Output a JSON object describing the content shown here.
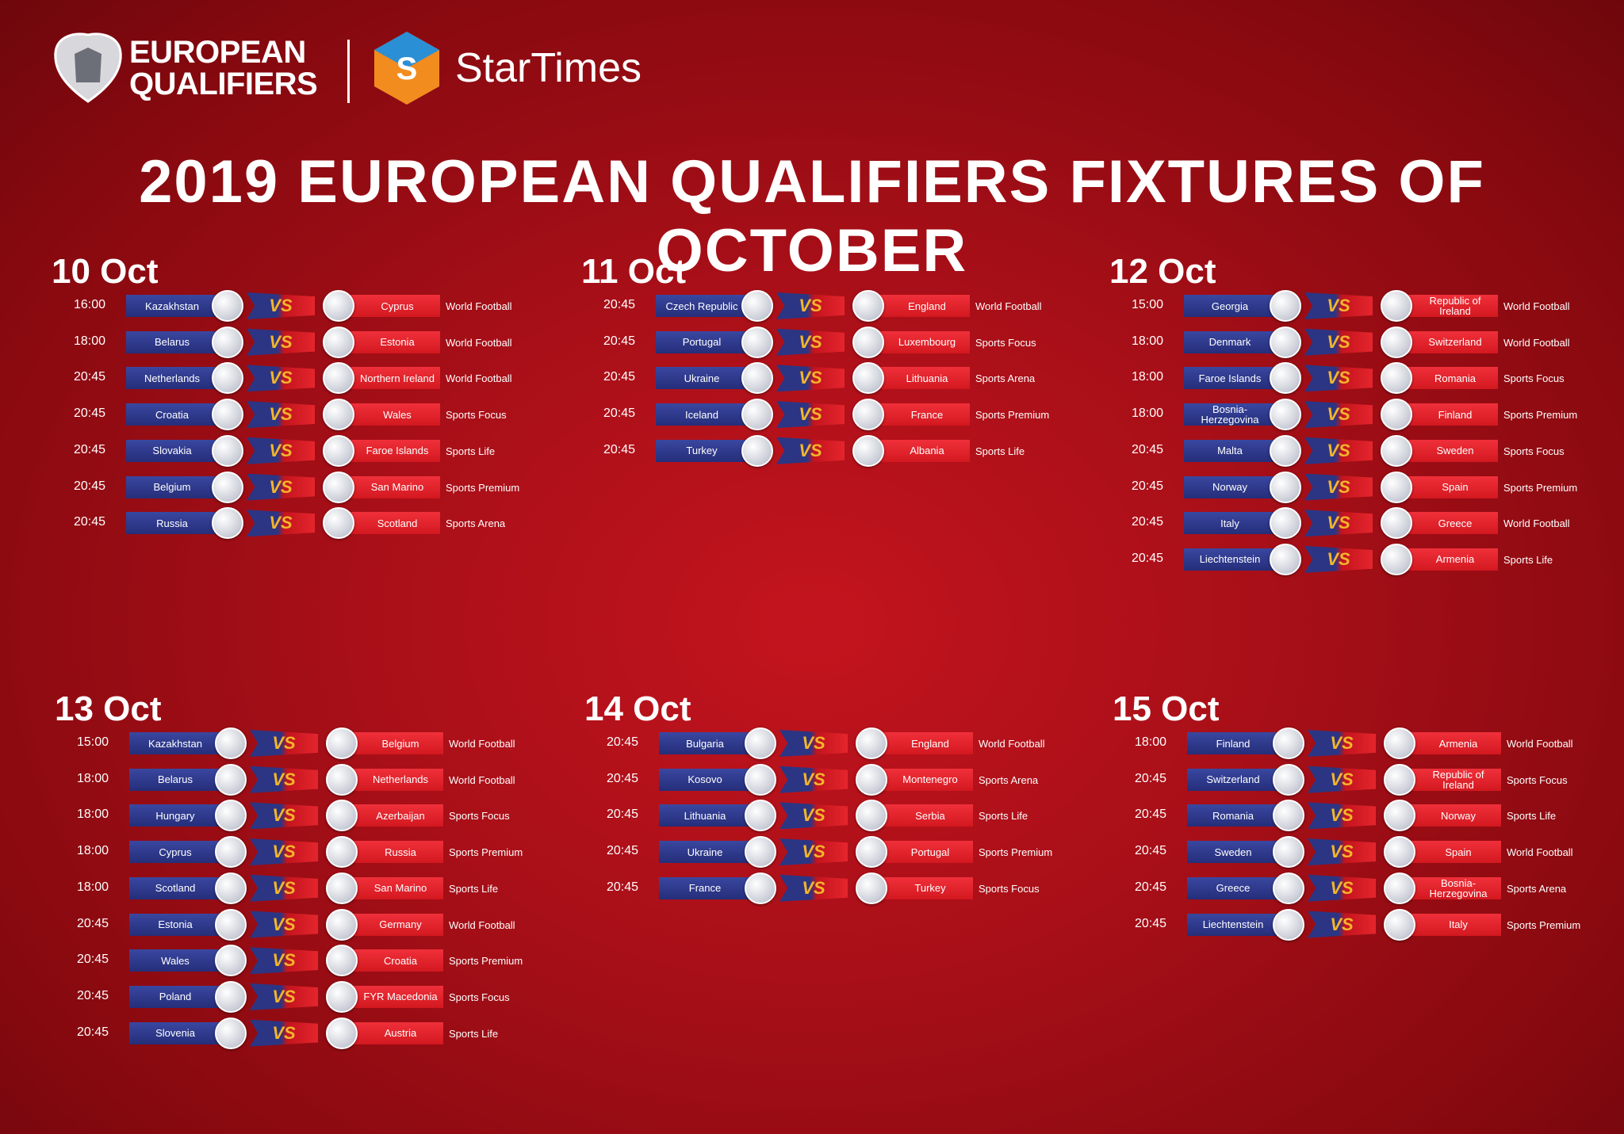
{
  "header": {
    "brand_line1": "EUROPEAN",
    "brand_line2": "QUALIFIERS",
    "partner": "StarTimes"
  },
  "title": "2019 EUROPEAN QUALIFIERS FIXTURES OF OCTOBER",
  "vs_label": "VS",
  "days": [
    {
      "date": "10 Oct",
      "matches": [
        {
          "time": "16:00",
          "home": "Kazakhstan",
          "away": "Cyprus",
          "channel": "World Football"
        },
        {
          "time": "18:00",
          "home": "Belarus",
          "away": "Estonia",
          "channel": "World Football"
        },
        {
          "time": "20:45",
          "home": "Netherlands",
          "away": "Northern Ireland",
          "channel": "World Football"
        },
        {
          "time": "20:45",
          "home": "Croatia",
          "away": "Wales",
          "channel": "Sports Focus"
        },
        {
          "time": "20:45",
          "home": "Slovakia",
          "away": "Faroe Islands",
          "channel": "Sports Life"
        },
        {
          "time": "20:45",
          "home": "Belgium",
          "away": "San Marino",
          "channel": "Sports Premium"
        },
        {
          "time": "20:45",
          "home": "Russia",
          "away": "Scotland",
          "channel": "Sports Arena"
        }
      ]
    },
    {
      "date": "11 Oct",
      "matches": [
        {
          "time": "20:45",
          "home": "Czech Republic",
          "away": "England",
          "channel": "World Football"
        },
        {
          "time": "20:45",
          "home": "Portugal",
          "away": "Luxembourg",
          "channel": "Sports Focus"
        },
        {
          "time": "20:45",
          "home": "Ukraine",
          "away": "Lithuania",
          "channel": "Sports Arena"
        },
        {
          "time": "20:45",
          "home": "Iceland",
          "away": "France",
          "channel": "Sports Premium"
        },
        {
          "time": "20:45",
          "home": "Turkey",
          "away": "Albania",
          "channel": "Sports Life"
        }
      ]
    },
    {
      "date": "12 Oct",
      "matches": [
        {
          "time": "15:00",
          "home": "Georgia",
          "away": "Republic of Ireland",
          "channel": "World Football"
        },
        {
          "time": "18:00",
          "home": "Denmark",
          "away": "Switzerland",
          "channel": "World Football"
        },
        {
          "time": "18:00",
          "home": "Faroe Islands",
          "away": "Romania",
          "channel": "Sports Focus"
        },
        {
          "time": "18:00",
          "home": "Bosnia-Herzegovina",
          "away": "Finland",
          "channel": "Sports Premium"
        },
        {
          "time": "20:45",
          "home": "Malta",
          "away": "Sweden",
          "channel": "Sports Focus"
        },
        {
          "time": "20:45",
          "home": "Norway",
          "away": "Spain",
          "channel": "Sports Premium"
        },
        {
          "time": "20:45",
          "home": "Italy",
          "away": "Greece",
          "channel": "World Football"
        },
        {
          "time": "20:45",
          "home": "Liechtenstein",
          "away": "Armenia",
          "channel": "Sports Life"
        }
      ]
    },
    {
      "date": "13 Oct",
      "matches": [
        {
          "time": "15:00",
          "home": "Kazakhstan",
          "away": "Belgium",
          "channel": "World Football"
        },
        {
          "time": "18:00",
          "home": "Belarus",
          "away": "Netherlands",
          "channel": "World Football"
        },
        {
          "time": "18:00",
          "home": "Hungary",
          "away": "Azerbaijan",
          "channel": "Sports Focus"
        },
        {
          "time": "18:00",
          "home": "Cyprus",
          "away": "Russia",
          "channel": "Sports Premium"
        },
        {
          "time": "18:00",
          "home": "Scotland",
          "away": "San Marino",
          "channel": "Sports Life"
        },
        {
          "time": "20:45",
          "home": "Estonia",
          "away": "Germany",
          "channel": "World Football"
        },
        {
          "time": "20:45",
          "home": "Wales",
          "away": "Croatia",
          "channel": "Sports Premium"
        },
        {
          "time": "20:45",
          "home": "Poland",
          "away": "FYR Macedonia",
          "channel": "Sports Focus"
        },
        {
          "time": "20:45",
          "home": "Slovenia",
          "away": "Austria",
          "channel": "Sports Life"
        }
      ]
    },
    {
      "date": "14 Oct",
      "matches": [
        {
          "time": "20:45",
          "home": "Bulgaria",
          "away": "England",
          "channel": "World Football"
        },
        {
          "time": "20:45",
          "home": "Kosovo",
          "away": "Montenegro",
          "channel": "Sports Arena"
        },
        {
          "time": "20:45",
          "home": "Lithuania",
          "away": "Serbia",
          "channel": "Sports Life"
        },
        {
          "time": "20:45",
          "home": "Ukraine",
          "away": "Portugal",
          "channel": "Sports Premium"
        },
        {
          "time": "20:45",
          "home": "France",
          "away": "Turkey",
          "channel": "Sports Focus"
        }
      ]
    },
    {
      "date": "15 Oct",
      "matches": [
        {
          "time": "18:00",
          "home": "Finland",
          "away": "Armenia",
          "channel": "World Football"
        },
        {
          "time": "20:45",
          "home": "Switzerland",
          "away": "Republic of Ireland",
          "channel": "Sports Focus"
        },
        {
          "time": "20:45",
          "home": "Romania",
          "away": "Norway",
          "channel": "Sports Life"
        },
        {
          "time": "20:45",
          "home": "Sweden",
          "away": "Spain",
          "channel": "World Football"
        },
        {
          "time": "20:45",
          "home": "Greece",
          "away": "Bosnia-Herzegovina",
          "channel": "Sports Arena"
        },
        {
          "time": "20:45",
          "home": "Liechtenstein",
          "away": "Italy",
          "channel": "Sports Premium"
        }
      ]
    }
  ]
}
